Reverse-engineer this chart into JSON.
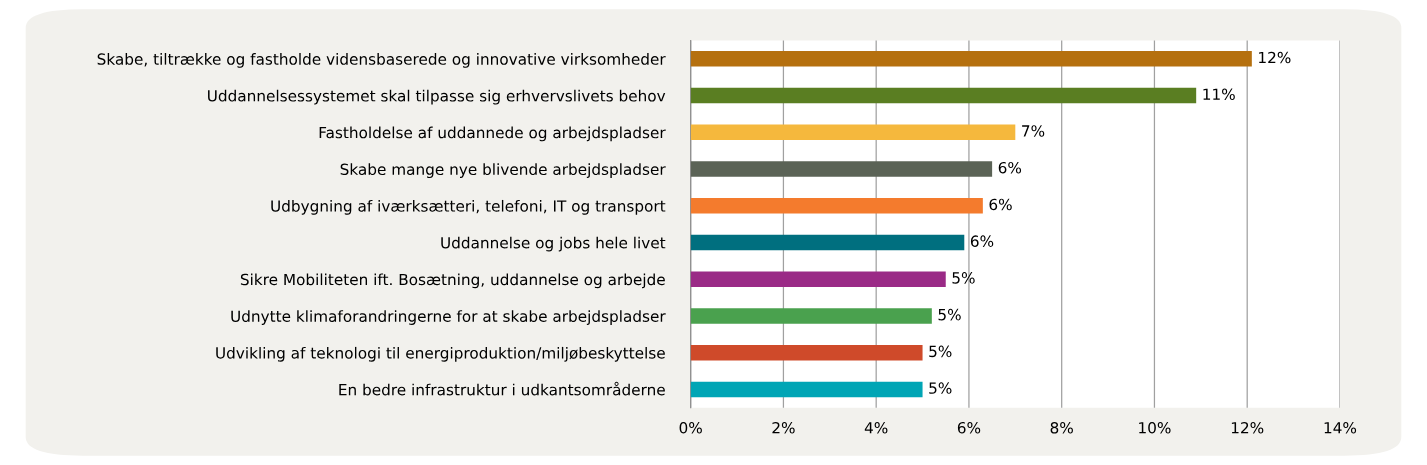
{
  "chart_data": {
    "type": "bar",
    "orientation": "horizontal",
    "categories": [
      "Skabe, tiltrække og fastholde vidensbaserede og innovative virksomheder",
      "Uddannelsessystemet skal tilpasse sig erhvervslivets behov",
      "Fastholdelse af uddannede og arbejdspladser",
      "Skabe mange nye blivende arbejdspladser",
      "Udbygning af iværksætteri, telefoni, IT og transport",
      "Uddannelse og jobs hele livet",
      "Sikre Mobiliteten ift. Bosætning, uddannelse og arbejde",
      "Udnytte klimaforandringerne for at skabe arbejdspladser",
      "Udvikling af teknologi til energiproduktion/miljøbeskyttelse",
      "En bedre infrastruktur i udkantsområderne"
    ],
    "values": [
      12.1,
      10.9,
      7.0,
      6.5,
      6.3,
      5.9,
      5.5,
      5.2,
      5.0,
      5.0
    ],
    "value_labels": [
      "12%",
      "11%",
      "7%",
      "6%",
      "6%",
      "6%",
      "5%",
      "5%",
      "5%",
      "5%"
    ],
    "colors": [
      "#b5700f",
      "#5a7e22",
      "#f5b83d",
      "#5b6356",
      "#f47b2d",
      "#006f7f",
      "#9a2a86",
      "#4aa14e",
      "#cf4a2a",
      "#00a5b5"
    ],
    "xlim": [
      0,
      14
    ],
    "xticks": [
      {
        "value": 0,
        "label": "0%"
      },
      {
        "value": 2,
        "label": "2%"
      },
      {
        "value": 4,
        "label": "4%"
      },
      {
        "value": 6,
        "label": "6%"
      },
      {
        "value": 8,
        "label": "8%"
      },
      {
        "value": 10,
        "label": "10%"
      },
      {
        "value": 12,
        "label": "12%"
      },
      {
        "value": 14,
        "label": "14%"
      }
    ],
    "grid": "x",
    "legend": false
  }
}
